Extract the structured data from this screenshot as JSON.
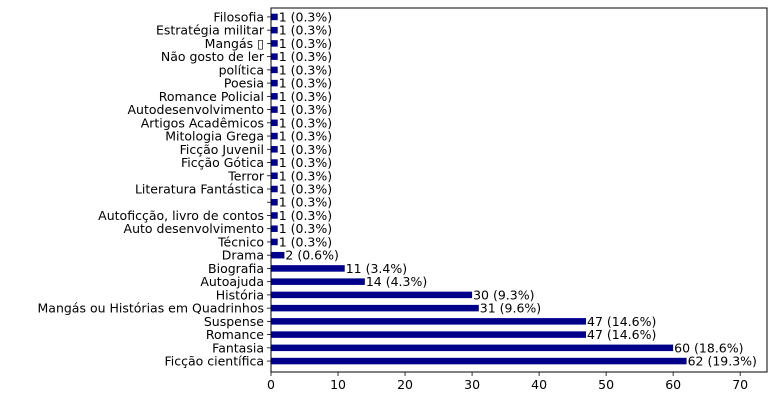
{
  "chart_data": {
    "type": "bar",
    "orientation": "horizontal",
    "bar_color": "#00008b",
    "xlim": [
      0,
      74
    ],
    "xticks": [
      0,
      10,
      20,
      30,
      40,
      50,
      60,
      70
    ],
    "grid": false,
    "legend": "none",
    "title": "",
    "xlabel": "",
    "ylabel": "",
    "categories": [
      "Ficção científica",
      "Fantasia",
      "Romance",
      "Suspense",
      "Mangás ou Histórias em Quadrinhos",
      "História",
      "Autoajuda",
      "Biografia",
      "Drama",
      "Técnico ",
      "Auto desenvolvimento ",
      "Autoficção, livro de contos",
      "",
      "Literatura Fantástica",
      "Terror",
      "Ficção Gótica",
      "Ficção Juvenil",
      "Mitologia Grega",
      "Artigos Acadêmicos",
      "Autodesenvolvimento",
      "Romance Policial",
      "Poesia",
      "política",
      "Não gosto de ler ",
      "Mangás ▯",
      "Estratégia militar",
      "Filosofia"
    ],
    "values": [
      62,
      60,
      47,
      47,
      31,
      30,
      14,
      11,
      2,
      1,
      1,
      1,
      1,
      1,
      1,
      1,
      1,
      1,
      1,
      1,
      1,
      1,
      1,
      1,
      1,
      1,
      1
    ],
    "data_labels": [
      "62 (19.3%)",
      "60 (18.6%)",
      "47 (14.6%)",
      "47 (14.6%)",
      "31 (9.6%)",
      "30 (9.3%)",
      "14 (4.3%)",
      "11 (3.4%)",
      "2 (0.6%)",
      "1 (0.3%)",
      "1 (0.3%)",
      "1 (0.3%)",
      "1 (0.3%)",
      "1 (0.3%)",
      "1 (0.3%)",
      "1 (0.3%)",
      "1 (0.3%)",
      "1 (0.3%)",
      "1 (0.3%)",
      "1 (0.3%)",
      "1 (0.3%)",
      "1 (0.3%)",
      "1 (0.3%)",
      "1 (0.3%)",
      "1 (0.3%)",
      "1 (0.3%)",
      "1 (0.3%)"
    ]
  }
}
